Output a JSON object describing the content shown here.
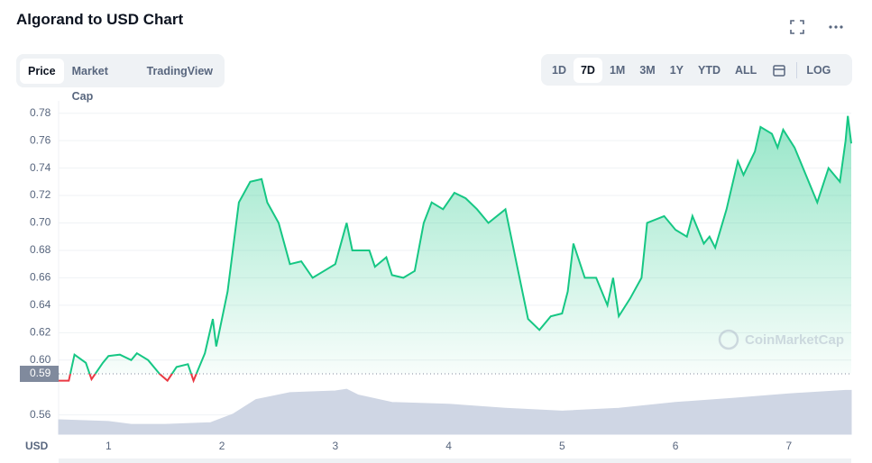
{
  "header": {
    "title": "Algorand to USD Chart"
  },
  "tabs": {
    "items": [
      "Price",
      "Market Cap",
      "TradingView"
    ],
    "active": 0
  },
  "ranges": {
    "items": [
      "1D",
      "7D",
      "1M",
      "3M",
      "1Y",
      "YTD",
      "ALL",
      "LOG"
    ],
    "active": 1
  },
  "chart_data": {
    "type": "area",
    "watermark": "CoinMarketCap",
    "currency": "USD",
    "xlim": [
      0.56,
      7.55
    ],
    "xticks": [
      1,
      2,
      3,
      4,
      5,
      6,
      7
    ],
    "ylim": [
      0.546,
      0.789
    ],
    "yticks": [
      0.56,
      {
        "value": 0.6,
        "label": "0.60"
      },
      0.62,
      0.64,
      0.66,
      0.68,
      {
        "value": 0.7,
        "label": "0.70"
      },
      0.72,
      0.74,
      0.76,
      0.78
    ],
    "reference": 0.59,
    "y2lim": [
      0,
      100
    ],
    "grid": true,
    "series": [
      {
        "color": "#16c784",
        "below_color": "#ea3943",
        "x": [
          0.56,
          0.65,
          0.7,
          0.8,
          0.85,
          0.95,
          1.0,
          1.1,
          1.2,
          1.25,
          1.35,
          1.45,
          1.52,
          1.6,
          1.7,
          1.75,
          1.85,
          1.92,
          1.95,
          2.05,
          2.15,
          2.25,
          2.35,
          2.4,
          2.5,
          2.6,
          2.7,
          2.8,
          2.9,
          3.0,
          3.1,
          3.15,
          3.3,
          3.35,
          3.45,
          3.5,
          3.6,
          3.7,
          3.78,
          3.85,
          3.95,
          4.05,
          4.15,
          4.25,
          4.35,
          4.5,
          4.6,
          4.7,
          4.8,
          4.9,
          5.0,
          5.05,
          5.1,
          5.2,
          5.3,
          5.4,
          5.45,
          5.5,
          5.6,
          5.7,
          5.75,
          5.9,
          6.0,
          6.1,
          6.15,
          6.25,
          6.3,
          6.35,
          6.45,
          6.55,
          6.6,
          6.7,
          6.75,
          6.85,
          6.9,
          6.95,
          7.05,
          7.15,
          7.25,
          7.35,
          7.45,
          7.5,
          7.52,
          7.55
        ],
        "values": [
          0.585,
          0.585,
          0.604,
          0.598,
          0.586,
          0.598,
          0.603,
          0.604,
          0.6,
          0.605,
          0.6,
          0.59,
          0.585,
          0.595,
          0.597,
          0.585,
          0.605,
          0.63,
          0.61,
          0.65,
          0.715,
          0.73,
          0.732,
          0.715,
          0.7,
          0.67,
          0.672,
          0.66,
          0.665,
          0.67,
          0.7,
          0.68,
          0.68,
          0.668,
          0.675,
          0.662,
          0.66,
          0.665,
          0.7,
          0.715,
          0.71,
          0.722,
          0.718,
          0.71,
          0.7,
          0.71,
          0.67,
          0.63,
          0.622,
          0.632,
          0.634,
          0.65,
          0.685,
          0.66,
          0.66,
          0.64,
          0.66,
          0.632,
          0.645,
          0.66,
          0.7,
          0.705,
          0.695,
          0.69,
          0.705,
          0.685,
          0.69,
          0.682,
          0.71,
          0.745,
          0.735,
          0.752,
          0.77,
          0.765,
          0.755,
          0.768,
          0.755,
          0.735,
          0.715,
          0.74,
          0.73,
          0.76,
          0.778,
          0.758
        ]
      },
      {
        "color": "#cfd6e4",
        "axis": "y2",
        "x": [
          0.56,
          1.0,
          1.2,
          1.5,
          1.9,
          2.1,
          2.3,
          2.6,
          3.0,
          3.1,
          3.2,
          3.5,
          4.0,
          4.5,
          5.0,
          5.5,
          6.0,
          6.5,
          7.0,
          7.5,
          7.55
        ],
        "values": [
          25,
          22,
          17,
          17,
          20,
          35,
          60,
          72,
          75,
          78,
          68,
          55,
          52,
          45,
          40,
          45,
          55,
          62,
          70,
          76,
          76
        ]
      }
    ]
  }
}
